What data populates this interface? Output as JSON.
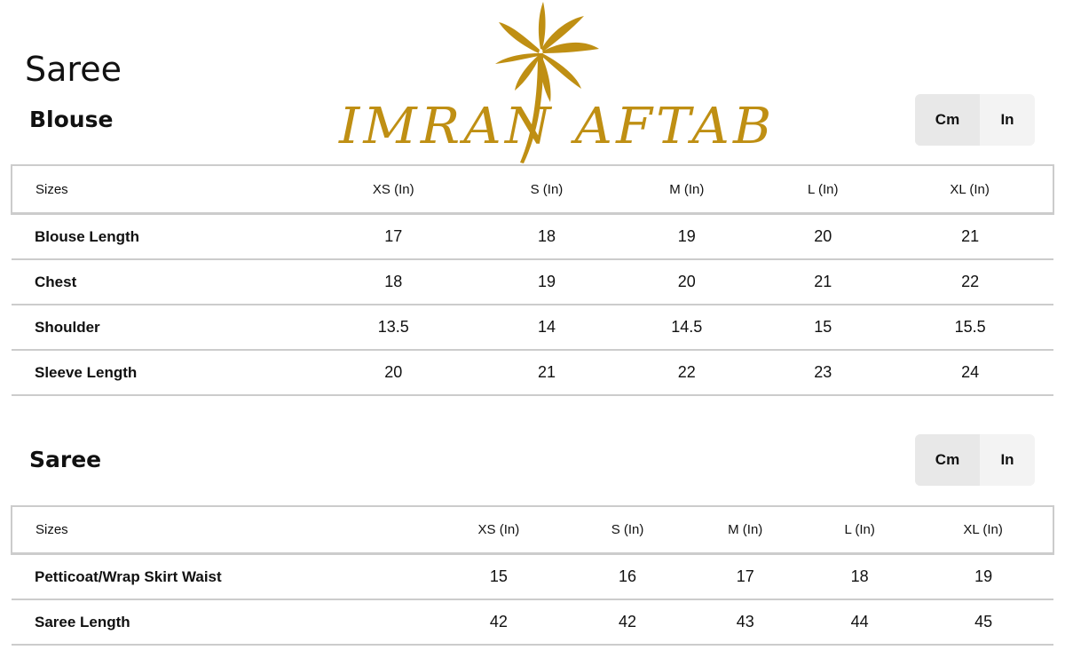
{
  "page_title": "Saree",
  "logo": {
    "text": "IMRAN AFTAB",
    "color": "#bf8f13",
    "icon": "palm-tree-icon"
  },
  "unit_toggle": {
    "cm": "Cm",
    "in": "In",
    "selected": "In"
  },
  "blouse": {
    "title": "Blouse",
    "headers": [
      "Sizes",
      "XS (In)",
      "S (In)",
      "M (In)",
      "L (In)",
      "XL (In)"
    ],
    "rows": [
      [
        "Blouse Length",
        "17",
        "18",
        "19",
        "20",
        "21"
      ],
      [
        "Chest",
        "18",
        "19",
        "20",
        "21",
        "22"
      ],
      [
        "Shoulder",
        "13.5",
        "14",
        "14.5",
        "15",
        "15.5"
      ],
      [
        "Sleeve Length",
        "20",
        "21",
        "22",
        "23",
        "24"
      ]
    ]
  },
  "saree": {
    "title": "Saree",
    "headers": [
      "Sizes",
      "XS (In)",
      "S (In)",
      "M (In)",
      "L (In)",
      "XL (In)"
    ],
    "rows": [
      [
        "Petticoat/Wrap Skirt Waist",
        "15",
        "16",
        "17",
        "18",
        "19"
      ],
      [
        "Saree Length",
        "42",
        "42",
        "43",
        "44",
        "45"
      ]
    ]
  }
}
